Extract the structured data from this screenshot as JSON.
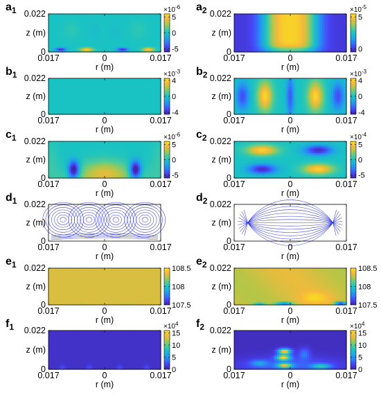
{
  "colormap": [
    "#3e26a8",
    "#4743f5",
    "#2d7ff9",
    "#1fa9e1",
    "#1ac3c3",
    "#5bcc8f",
    "#b5c647",
    "#f6b93b",
    "#f9e21c"
  ],
  "streamline_color": "#3a3fd8",
  "axis": {
    "xlabel": "r (m)",
    "ylabel": "z (m)",
    "x_ticks": [
      "0.017",
      "0",
      "0.017"
    ],
    "y_ticks": [
      "0",
      "0.022"
    ]
  },
  "chart_data": [
    {
      "label_letter": "a",
      "label_sub": "1",
      "type": "heatmap",
      "field": "a1",
      "colorbar": {
        "exp_prefix": "×10",
        "exp_power": "-6",
        "ticks": [
          "5",
          "0",
          "-5"
        ],
        "range": [
          -6,
          6
        ]
      }
    },
    {
      "label_letter": "a",
      "label_sub": "2",
      "type": "heatmap",
      "field": "a2",
      "colorbar": {
        "exp_prefix": "×10",
        "exp_power": "-5",
        "ticks": [
          "5",
          "0"
        ],
        "range": [
          -0.5,
          5.5
        ]
      }
    },
    {
      "label_letter": "b",
      "label_sub": "1",
      "type": "heatmap",
      "field": "b1",
      "colorbar": {
        "exp_prefix": "×10",
        "exp_power": "-3",
        "ticks": [
          "4",
          "0",
          "-4"
        ],
        "range": [
          -4.5,
          4.5
        ]
      }
    },
    {
      "label_letter": "b",
      "label_sub": "2",
      "type": "heatmap",
      "field": "b2",
      "colorbar": {
        "exp_prefix": "×10",
        "exp_power": "-3",
        "ticks": [
          "4",
          "0",
          "-4"
        ],
        "range": [
          -4.5,
          4.5
        ]
      }
    },
    {
      "label_letter": "c",
      "label_sub": "1",
      "type": "heatmap",
      "field": "c1",
      "colorbar": {
        "exp_prefix": "×10",
        "exp_power": "-6",
        "ticks": [
          "5",
          "0",
          "-5"
        ],
        "range": [
          -6,
          6
        ]
      }
    },
    {
      "label_letter": "c",
      "label_sub": "2",
      "type": "heatmap",
      "field": "c2",
      "colorbar": {
        "exp_prefix": "×10",
        "exp_power": "-4",
        "ticks": [
          "5",
          "0",
          "-5"
        ],
        "range": [
          -6,
          6
        ]
      }
    },
    {
      "label_letter": "d",
      "label_sub": "1",
      "type": "streamlines",
      "field": "d1"
    },
    {
      "label_letter": "d",
      "label_sub": "2",
      "type": "streamlines",
      "field": "d2"
    },
    {
      "label_letter": "e",
      "label_sub": "1",
      "type": "heatmap",
      "field": "e1",
      "colorbar": {
        "exp_prefix": "",
        "exp_power": "",
        "ticks": [
          "108.5",
          "108",
          "107.5"
        ],
        "range": [
          107.5,
          108.5
        ]
      }
    },
    {
      "label_letter": "e",
      "label_sub": "2",
      "type": "heatmap",
      "field": "e2",
      "colorbar": {
        "exp_prefix": "",
        "exp_power": "",
        "ticks": [
          "108.5",
          "108",
          "107.5"
        ],
        "range": [
          107.5,
          108.5
        ]
      }
    },
    {
      "label_letter": "f",
      "label_sub": "1",
      "type": "heatmap",
      "field": "f1",
      "colorbar": {
        "exp_prefix": "×10",
        "exp_power": "4",
        "ticks": [
          "15",
          "10",
          "5",
          "0"
        ],
        "range": [
          0,
          16
        ]
      }
    },
    {
      "label_letter": "f",
      "label_sub": "2",
      "type": "heatmap",
      "field": "f2",
      "colorbar": {
        "exp_prefix": "×10",
        "exp_power": "4",
        "ticks": [
          "15",
          "10",
          "5",
          "0"
        ],
        "range": [
          0,
          16
        ]
      }
    }
  ]
}
